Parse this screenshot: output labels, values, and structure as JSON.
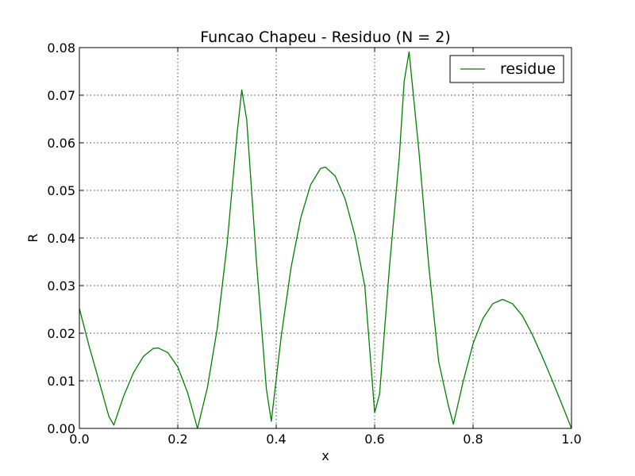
{
  "chart_data": {
    "type": "line",
    "title": "Funcao Chapeu - Residuo (N = 2)",
    "xlabel": "x",
    "ylabel": "R",
    "xlim": [
      0.0,
      1.0
    ],
    "ylim": [
      0.0,
      0.08
    ],
    "xticks": [
      "0.0",
      "0.2",
      "0.4",
      "0.6",
      "0.8",
      "1.0"
    ],
    "yticks": [
      "0.00",
      "0.01",
      "0.02",
      "0.03",
      "0.04",
      "0.05",
      "0.06",
      "0.07",
      "0.08"
    ],
    "grid": true,
    "legend_position": "top-right",
    "colors": {
      "series": "#008000",
      "axes": "#000000",
      "background": "#ffffff"
    },
    "series": [
      {
        "name": "residue",
        "x": [
          0.0,
          0.02,
          0.04,
          0.06,
          0.07,
          0.09,
          0.11,
          0.13,
          0.15,
          0.16,
          0.18,
          0.2,
          0.22,
          0.24,
          0.26,
          0.28,
          0.3,
          0.32,
          0.33,
          0.34,
          0.36,
          0.38,
          0.39,
          0.41,
          0.43,
          0.45,
          0.47,
          0.49,
          0.5,
          0.52,
          0.54,
          0.56,
          0.58,
          0.6,
          0.61,
          0.63,
          0.65,
          0.66,
          0.67,
          0.69,
          0.71,
          0.73,
          0.75,
          0.76,
          0.78,
          0.8,
          0.82,
          0.84,
          0.86,
          0.88,
          0.9,
          0.92,
          0.94,
          0.96,
          0.98,
          1.0
        ],
        "values": [
          0.0252,
          0.0172,
          0.0099,
          0.0025,
          0.0007,
          0.0068,
          0.0117,
          0.0151,
          0.0168,
          0.0169,
          0.0159,
          0.0129,
          0.0075,
          0.0,
          0.0085,
          0.0209,
          0.0385,
          0.0615,
          0.0711,
          0.0649,
          0.0348,
          0.0083,
          0.0015,
          0.0192,
          0.0337,
          0.0443,
          0.0512,
          0.0546,
          0.0549,
          0.053,
          0.0482,
          0.0405,
          0.0299,
          0.0033,
          0.0072,
          0.0338,
          0.0569,
          0.0729,
          0.0791,
          0.0582,
          0.0341,
          0.0141,
          0.0047,
          0.0009,
          0.0099,
          0.0178,
          0.0231,
          0.0262,
          0.0271,
          0.0262,
          0.0237,
          0.0198,
          0.0152,
          0.0103,
          0.0052,
          0.0
        ]
      }
    ]
  }
}
